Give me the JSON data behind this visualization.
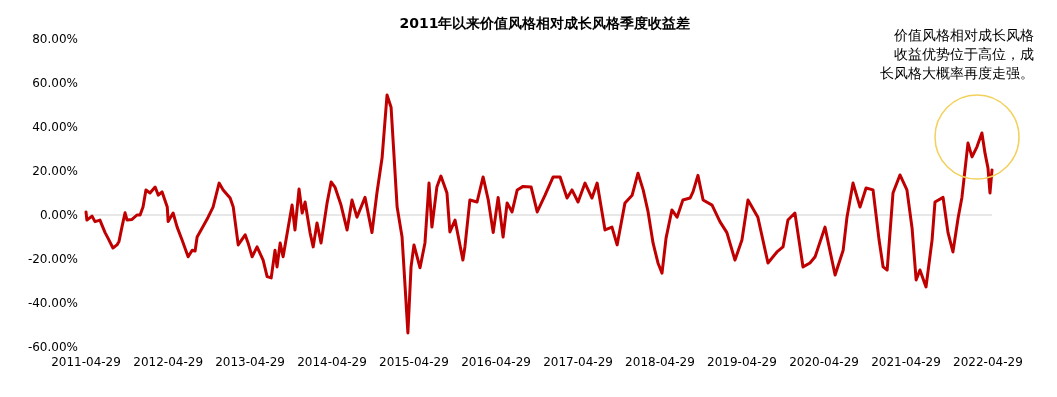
{
  "chart_data": {
    "type": "line",
    "title": "2011年以来价值风格相对成长风格季度收益差",
    "annotations": [
      "价值风格相对成长风格收益优势位于高位，成长风格大概率再度走强。"
    ],
    "x": [
      "2011-04-29",
      "2011-05-03",
      "2011-05-26",
      "2011-06-08",
      "2011-06-30",
      "2011-07-23",
      "2011-08-05",
      "2011-08-27",
      "2011-09-14",
      "2011-09-23",
      "2011-10-06",
      "2011-10-20",
      "2011-10-29",
      "2011-11-20",
      "2011-12-12",
      "2011-12-26",
      "2012-01-08",
      "2012-01-21",
      "2012-02-08",
      "2012-03-02",
      "2012-03-16",
      "2012-04-02",
      "2012-04-25",
      "2012-04-29",
      "2012-05-21",
      "2012-06-08",
      "2012-06-30",
      "2012-07-27",
      "2012-08-14",
      "2012-08-27",
      "2012-09-05",
      "2012-09-27",
      "2012-10-24",
      "2012-11-15",
      "2012-12-12",
      "2012-12-30",
      "2013-01-30",
      "2013-02-13",
      "2013-03-07",
      "2013-04-07",
      "2013-04-20",
      "2013-05-08",
      "2013-05-30",
      "2013-06-26",
      "2013-07-14",
      "2013-08-01",
      "2013-08-18",
      "2013-08-27",
      "2013-09-10",
      "2013-09-23",
      "2013-11-02",
      "2013-11-15",
      "2013-12-03",
      "2013-12-17",
      "2013-12-30",
      "2014-01-21",
      "2014-02-04",
      "2014-02-21",
      "2014-03-11",
      "2014-04-07",
      "2014-04-25",
      "2014-05-12",
      "2014-06-08",
      "2014-07-05",
      "2014-07-27",
      "2014-08-18",
      "2014-09-23",
      "2014-10-24",
      "2014-11-15",
      "2014-12-08",
      "2014-12-30",
      "2015-01-17",
      "2015-02-13",
      "2015-03-07",
      "2015-04-02",
      "2015-04-16",
      "2015-04-29",
      "2015-05-26",
      "2015-06-17",
      "2015-07-05",
      "2015-07-18",
      "2015-08-09",
      "2015-08-27",
      "2015-09-23",
      "2015-10-06",
      "2015-10-29",
      "2015-12-03",
      "2015-12-12",
      "2016-01-03",
      "2016-02-04",
      "2016-03-02",
      "2016-03-25",
      "2016-04-16",
      "2016-05-08",
      "2016-05-30",
      "2016-06-17",
      "2016-07-09",
      "2016-08-01",
      "2016-08-27",
      "2016-10-02",
      "2016-10-29",
      "2016-12-03",
      "2017-01-08",
      "2017-02-08",
      "2017-03-11",
      "2017-04-02",
      "2017-04-29",
      "2017-05-30",
      "2017-06-30",
      "2017-07-23",
      "2017-08-27",
      "2017-09-27",
      "2017-10-20",
      "2017-11-24",
      "2017-12-26",
      "2018-01-21",
      "2018-02-13",
      "2018-03-07",
      "2018-03-29",
      "2018-04-20",
      "2018-05-08",
      "2018-05-26",
      "2018-06-21",
      "2018-07-14",
      "2018-08-09",
      "2018-09-10",
      "2018-09-23",
      "2018-10-15",
      "2018-11-07",
      "2018-12-17",
      "2019-01-21",
      "2019-02-21",
      "2019-03-29",
      "2019-04-29",
      "2019-05-26",
      "2019-07-09",
      "2019-08-23",
      "2019-10-02",
      "2019-10-29",
      "2019-11-20",
      "2019-12-21",
      "2020-01-26",
      "2020-02-26",
      "2020-03-20",
      "2020-05-03",
      "2020-06-17",
      "2020-07-23",
      "2020-08-09",
      "2020-09-05",
      "2020-10-06",
      "2020-11-02",
      "2020-12-03",
      "2020-12-30",
      "2021-01-17",
      "2021-02-04",
      "2021-03-02",
      "2021-04-02",
      "2021-05-03",
      "2021-05-26",
      "2021-06-13",
      "2021-06-30",
      "2021-07-27",
      "2021-08-23",
      "2021-09-05",
      "2021-10-11",
      "2021-11-02",
      "2021-11-24",
      "2021-12-17",
      "2022-01-03",
      "2022-01-30",
      "2022-02-17",
      "2022-03-11",
      "2022-04-02",
      "2022-04-16",
      "2022-04-29",
      "2022-05-08",
      "2022-05-17"
    ],
    "series": [
      {
        "color": "#c00000",
        "values": [
          1.4,
          -2.3,
          -0.5,
          -3,
          -2.3,
          -8,
          -10.5,
          -15,
          -13.6,
          -12,
          -5.5,
          1,
          -2.3,
          -2,
          0,
          0,
          3.6,
          11.4,
          10,
          12.7,
          9,
          10.5,
          3.6,
          -3,
          0.9,
          -5.5,
          -11.4,
          -19,
          -16,
          -16.4,
          -10,
          -6,
          -1,
          3.6,
          14.5,
          11.4,
          7.7,
          3.6,
          -13.6,
          -9,
          -12.7,
          -19,
          -14.5,
          -20.5,
          -28,
          -28.6,
          -16,
          -23.6,
          -12.7,
          -19,
          4.5,
          -6.8,
          11.8,
          0.9,
          5.9,
          -8,
          -14.5,
          -3.6,
          -12.7,
          5.5,
          15,
          12.7,
          4.5,
          -6.8,
          6.8,
          -1,
          8,
          -8,
          10,
          26,
          54.5,
          49,
          3.6,
          -10,
          -53.6,
          -23.6,
          -13.6,
          -24,
          -12.7,
          14.5,
          -5.5,
          12.7,
          17.7,
          10,
          -7.7,
          -2.3,
          -20.5,
          -14.5,
          6.8,
          5.9,
          17.3,
          6.8,
          -8,
          8,
          -10,
          5.5,
          1.4,
          11.4,
          13,
          12.7,
          1.4,
          9,
          17.3,
          17.3,
          7.7,
          11.4,
          5.9,
          14.5,
          7.7,
          14.5,
          -6.8,
          -5.5,
          -13.6,
          5.5,
          9,
          19,
          11.4,
          1.4,
          -12.7,
          -21.8,
          -26.4,
          -10.5,
          2.3,
          -1,
          6.8,
          7.7,
          10.5,
          18,
          6.8,
          4.5,
          -3,
          -8,
          -20.5,
          -11.4,
          6.8,
          -1,
          -21.8,
          -16.8,
          -14.5,
          -2.3,
          0.9,
          -23.6,
          -21.8,
          -19,
          -5.5,
          -27.3,
          -16,
          -1,
          14.5,
          3.6,
          12.3,
          11.4,
          -11.4,
          -23.6,
          -25,
          10,
          18.2,
          11.4,
          -6,
          -29.5,
          -25,
          -32.7,
          -11.4,
          5.9,
          8,
          -8,
          -16.8,
          -1.4,
          8,
          32.7,
          26.4,
          31,
          37.3,
          28,
          21.4,
          10,
          20.5
        ]
      }
    ],
    "xlim": [
      "2011-04-29",
      "2022-05-17"
    ],
    "xticks": [
      "2011-04-29",
      "2012-04-29",
      "2013-04-29",
      "2014-04-29",
      "2015-04-29",
      "2016-04-29",
      "2017-04-29",
      "2018-04-29",
      "2019-04-29",
      "2020-04-29",
      "2021-04-29",
      "2022-04-29"
    ],
    "ylim": [
      -60,
      80
    ],
    "yticks": [
      {
        "value": -60,
        "label": "-60.00%"
      },
      {
        "value": -40,
        "label": "-40.00%"
      },
      {
        "value": -20,
        "label": "-20.00%"
      },
      {
        "value": 0,
        "label": "0.00%"
      },
      {
        "value": 20,
        "label": "20.00%"
      },
      {
        "value": 40,
        "label": "40.00%"
      },
      {
        "value": 60,
        "label": "60.00%"
      },
      {
        "value": 80,
        "label": "80.00%"
      }
    ],
    "marker": "none",
    "line_style": "solid"
  }
}
